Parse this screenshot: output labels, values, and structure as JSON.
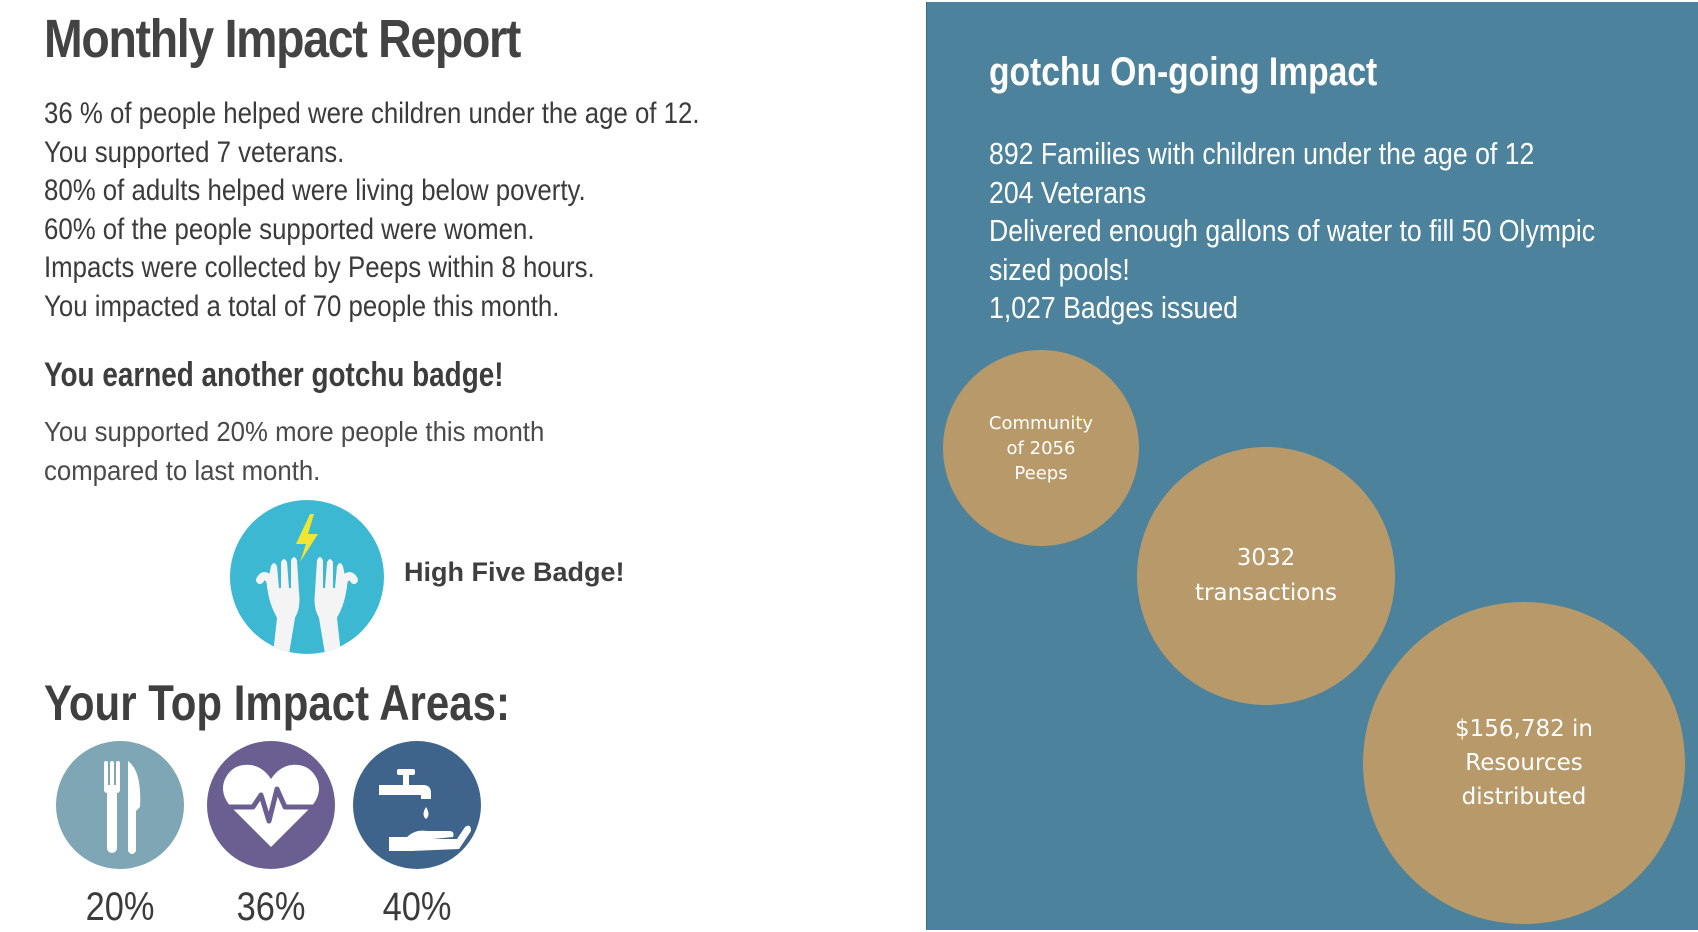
{
  "report": {
    "title": "Monthly Impact Report",
    "stats": [
      "36 % of people helped were children under the age of 12.",
      "You supported 7 veterans.",
      "80% of adults helped were living below poverty.",
      "60% of the people supported were women.",
      "Impacts were collected by Peeps within 8 hours.",
      "You impacted a total of 70 people this month."
    ],
    "earned_heading": "You earned another gotchu badge!",
    "support_text": "You supported 20% more people this month compared to last month.",
    "badge_label": "High Five Badge!",
    "badge_icon": "high-five-hands-icon",
    "badge_color": "#3cb8d2",
    "areas_title": "Your Top Impact Areas:",
    "areas": [
      {
        "icon": "fork-knife-icon",
        "color": "#7ea6b4",
        "percent": "20%"
      },
      {
        "icon": "heart-pulse-icon",
        "color": "#6a5f90",
        "percent": "36%"
      },
      {
        "icon": "water-tap-hand-icon",
        "color": "#3e648c",
        "percent": "40%"
      }
    ]
  },
  "ongoing": {
    "title": "gotchu On-going Impact",
    "stats": [
      "892 Families with children under the age of 12",
      "204 Veterans",
      "Delivered enough gallons of water to fill 50 Olympic sized pools!",
      "1,027 Badges issued"
    ],
    "panel_color": "#4c829c",
    "bubble_color": "#b89a6a",
    "bubbles": [
      {
        "text": "Community\nof 2056\nPeeps"
      },
      {
        "text": "3032\ntransactions"
      },
      {
        "text": "$156,782 in\nResources\ndistributed"
      }
    ]
  }
}
